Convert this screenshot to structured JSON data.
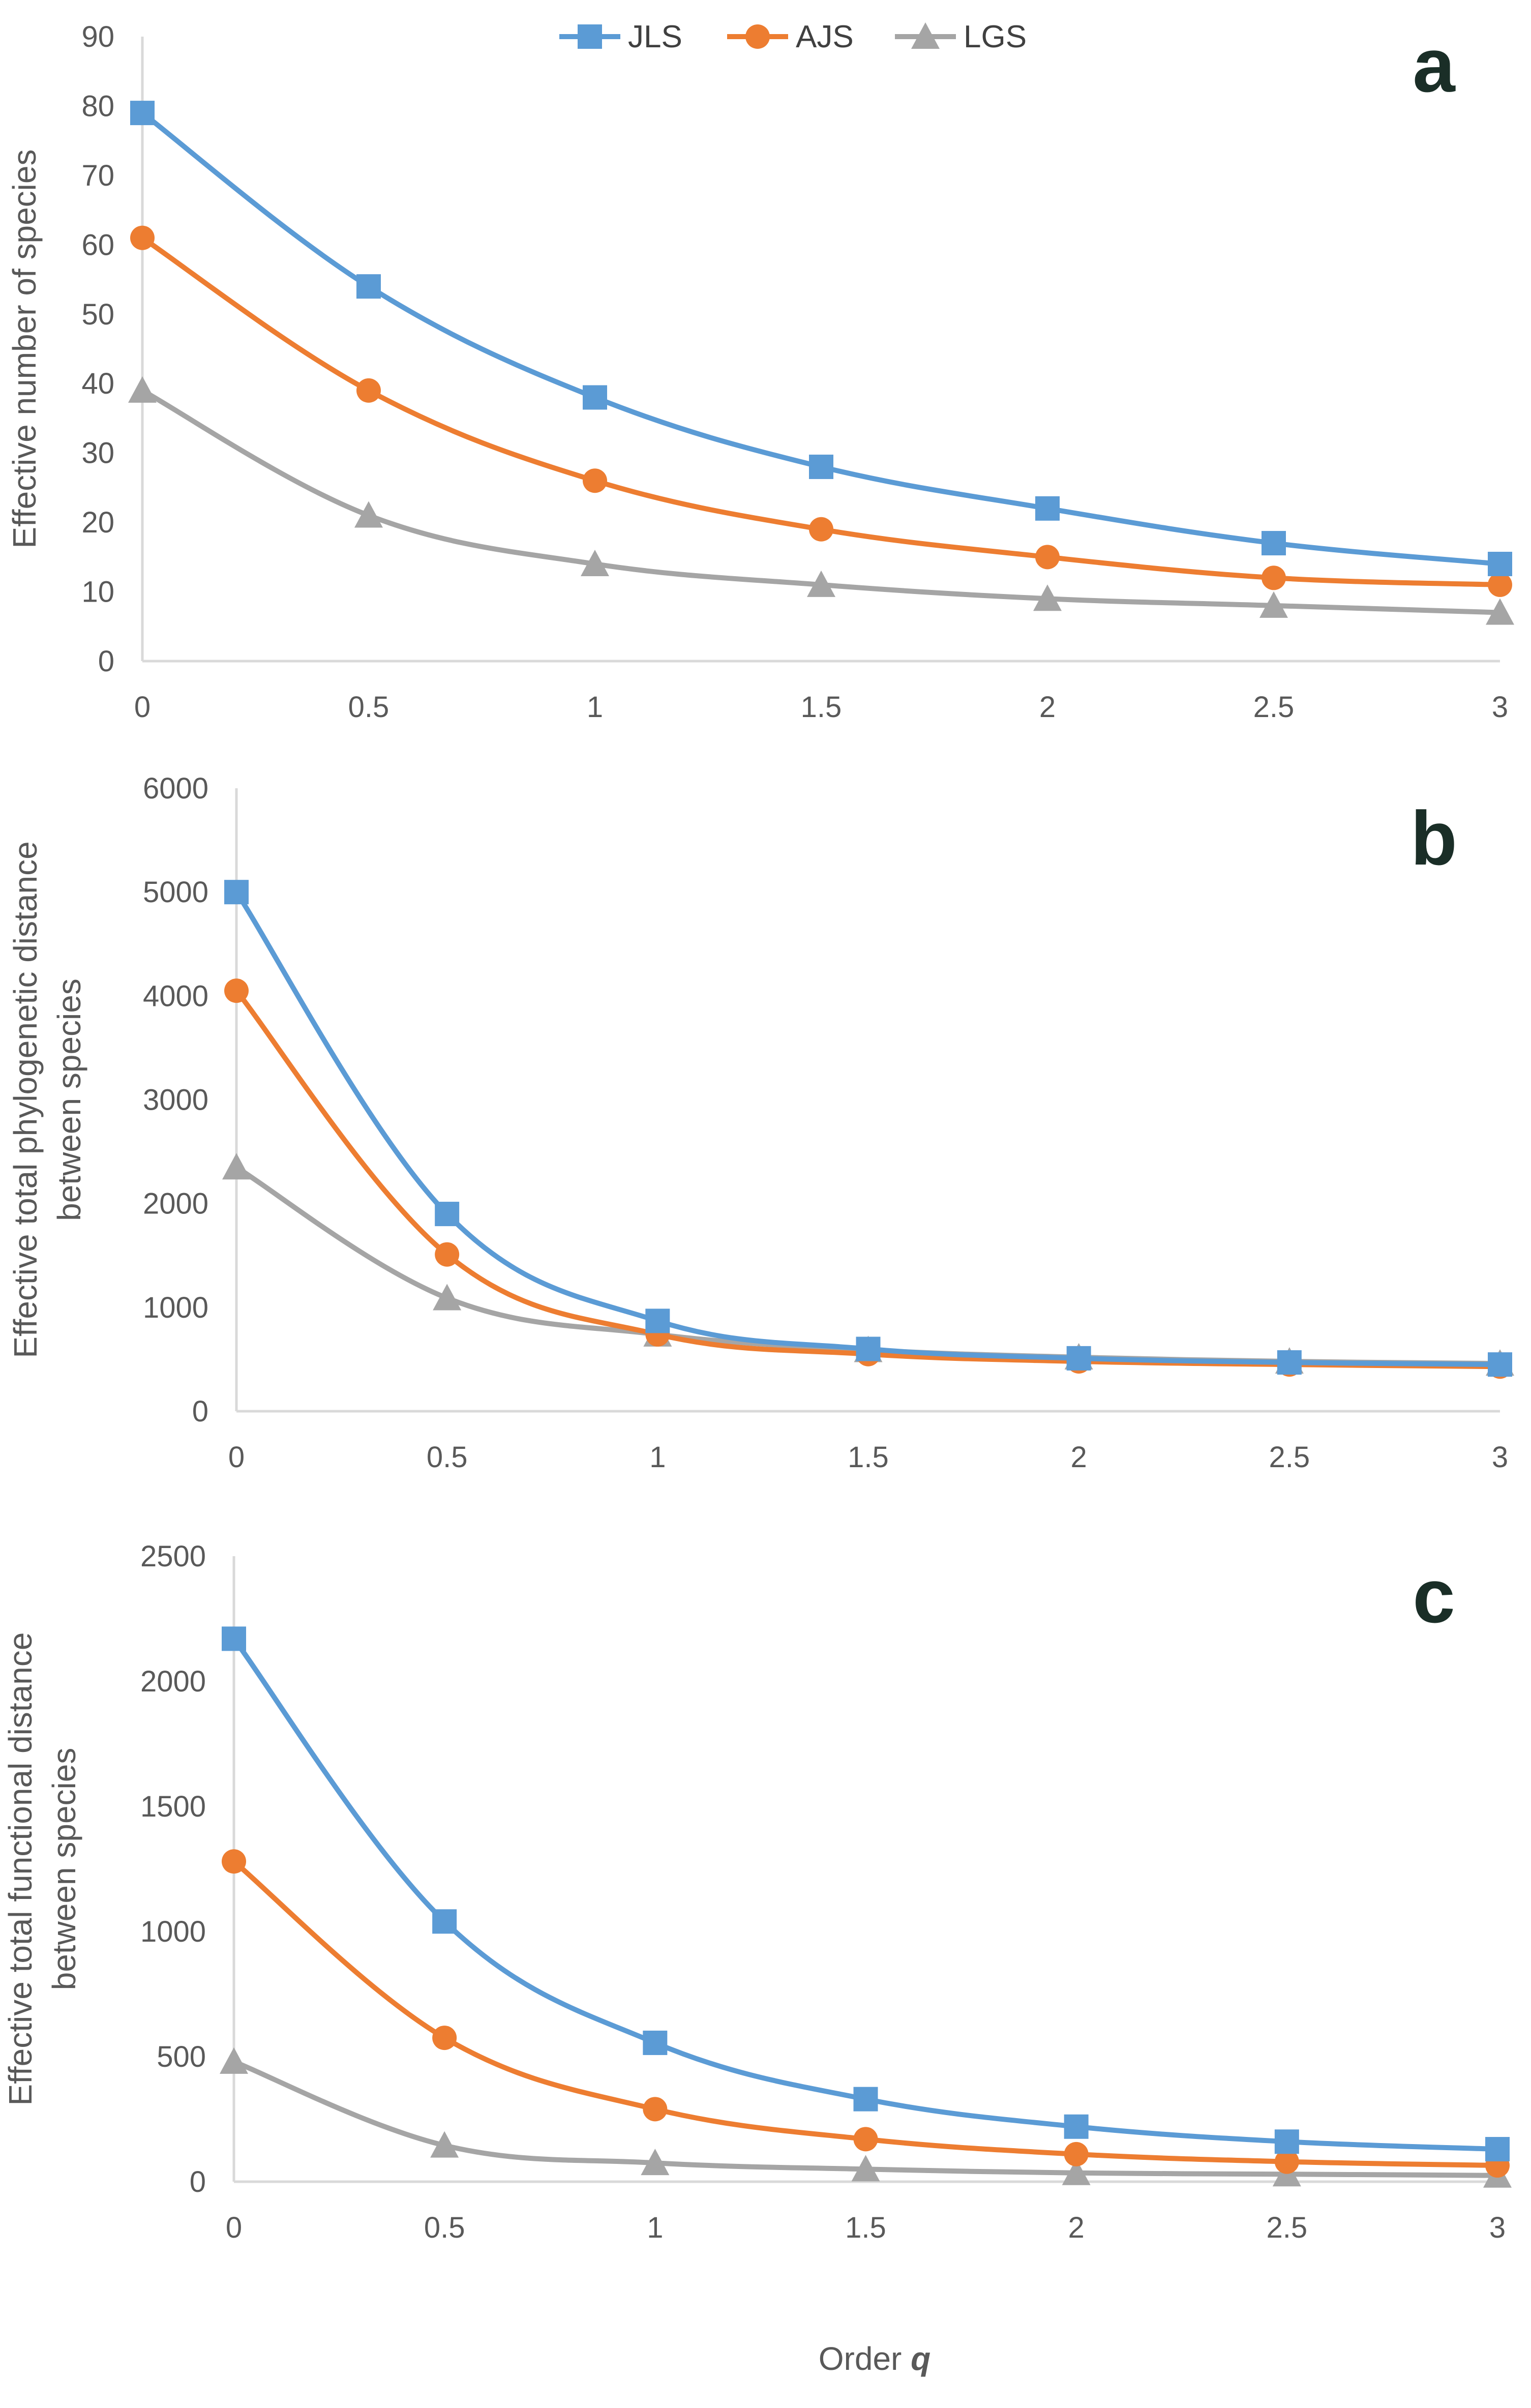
{
  "legend": {
    "items": [
      {
        "name": "JLS",
        "marker": "square",
        "color": "#5b9bd5"
      },
      {
        "name": "AJS",
        "marker": "circle",
        "color": "#ed7d31"
      },
      {
        "name": "LGS",
        "marker": "triangle",
        "color": "#a5a5a5"
      }
    ]
  },
  "xlabel_prefix": "Order ",
  "xlabel_var": "q",
  "chart_data": [
    {
      "type": "line",
      "panel": "a",
      "title": "",
      "xlabel": "Order q",
      "ylabel": "Effective number of species",
      "x": [
        0,
        0.5,
        1,
        1.5,
        2,
        2.5,
        3
      ],
      "xlim": [
        0,
        3
      ],
      "ylim": [
        0,
        90
      ],
      "yticks": [
        0,
        10,
        20,
        30,
        40,
        50,
        60,
        70,
        80,
        90
      ],
      "xticks": [
        "0",
        "0.5",
        "1",
        "1.5",
        "2",
        "2.5",
        "3"
      ],
      "series": [
        {
          "name": "JLS",
          "values": [
            79,
            54,
            38,
            28,
            22,
            17,
            14
          ]
        },
        {
          "name": "AJS",
          "values": [
            61,
            39,
            26,
            19,
            15,
            12,
            11
          ]
        },
        {
          "name": "LGS",
          "values": [
            39,
            21,
            14,
            11,
            9,
            8,
            7
          ]
        }
      ]
    },
    {
      "type": "line",
      "panel": "b",
      "title": "",
      "xlabel": "Order q",
      "ylabel": [
        "Effective total phylogenetic distance",
        "between species"
      ],
      "x": [
        0,
        0.5,
        1,
        1.5,
        2,
        2.5,
        3
      ],
      "xlim": [
        0,
        3
      ],
      "ylim": [
        0,
        6000
      ],
      "yticks": [
        0,
        1000,
        2000,
        3000,
        4000,
        5000,
        6000
      ],
      "xticks": [
        "0",
        "0.5",
        "1",
        "1.5",
        "2",
        "2.5",
        "3"
      ],
      "series": [
        {
          "name": "JLS",
          "values": [
            5000,
            1900,
            870,
            600,
            510,
            470,
            450
          ]
        },
        {
          "name": "AJS",
          "values": [
            4050,
            1510,
            740,
            550,
            480,
            450,
            430
          ]
        },
        {
          "name": "LGS",
          "values": [
            2350,
            1090,
            740,
            590,
            520,
            480,
            460
          ]
        }
      ]
    },
    {
      "type": "line",
      "panel": "c",
      "title": "",
      "xlabel": "Order q",
      "ylabel": [
        "Effective total functional distance",
        "between species"
      ],
      "x": [
        0,
        0.5,
        1,
        1.5,
        2,
        2.5,
        3
      ],
      "xlim": [
        0,
        3
      ],
      "ylim": [
        0,
        2500
      ],
      "yticks": [
        0,
        500,
        1000,
        1500,
        2000,
        2500
      ],
      "xticks": [
        "0",
        "0.5",
        "1",
        "1.5",
        "2",
        "2.5",
        "3"
      ],
      "series": [
        {
          "name": "JLS",
          "values": [
            2170,
            1040,
            555,
            330,
            220,
            160,
            130
          ]
        },
        {
          "name": "AJS",
          "values": [
            1280,
            575,
            290,
            170,
            110,
            80,
            65
          ]
        },
        {
          "name": "LGS",
          "values": [
            480,
            145,
            75,
            50,
            35,
            30,
            25
          ]
        }
      ]
    }
  ]
}
